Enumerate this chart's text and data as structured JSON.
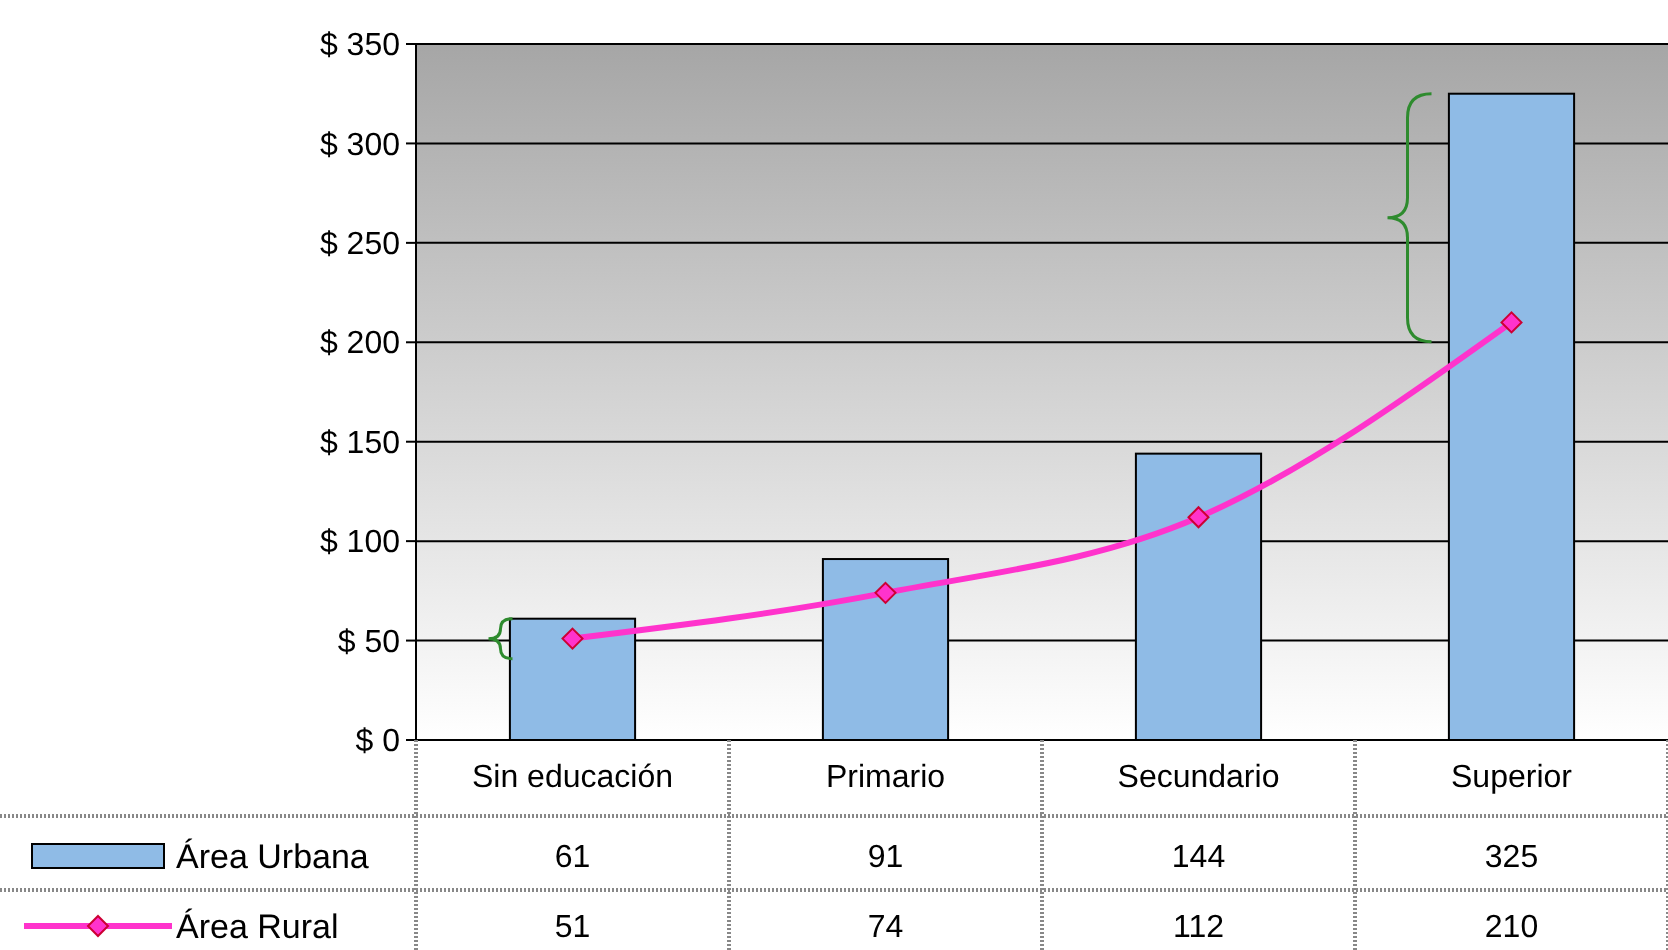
{
  "chart_data": {
    "type": "bar",
    "categories": [
      "Sin educación",
      "Primario",
      "Secundario",
      "Superior"
    ],
    "series": [
      {
        "name": "Área Urbana",
        "color": "#8fbbe6",
        "values": [
          61,
          91,
          144,
          325
        ]
      },
      {
        "name": "Área Rural",
        "type": "line",
        "color": "#ff33cc",
        "values": [
          51,
          74,
          112,
          210
        ]
      }
    ],
    "ylim": [
      0,
      350
    ],
    "yticks": [
      {
        "value": 0,
        "label": "$ 0"
      },
      {
        "value": 50,
        "label": "$ 50"
      },
      {
        "value": 100,
        "label": "$ 100"
      },
      {
        "value": 150,
        "label": "$ 150"
      },
      {
        "value": 200,
        "label": "$ 200"
      },
      {
        "value": 250,
        "label": "$ 250"
      },
      {
        "value": 300,
        "label": "$ 300"
      },
      {
        "value": 350,
        "label": "$ 350"
      }
    ],
    "grid": "y",
    "marker": "diamond",
    "line_style": "solid",
    "legend": "bottom left",
    "data_labels": true
  }
}
